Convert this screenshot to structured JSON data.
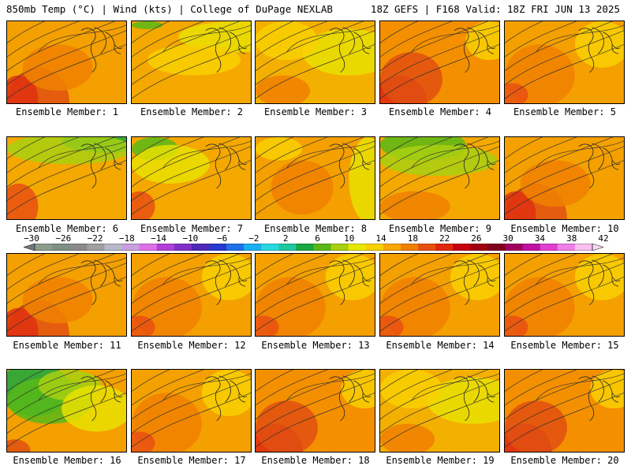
{
  "header": {
    "left": "850mb Temp (°C) | Wind (kts) | College of DuPage NEXLAB",
    "right": "18Z GEFS | F168 Valid: 18Z FRI JUN 13 2025"
  },
  "panels": [
    {
      "label": "Ensemble Member: 1",
      "scheme": "hot-west"
    },
    {
      "label": "Ensemble Member: 2",
      "scheme": "cool-north"
    },
    {
      "label": "Ensemble Member: 3",
      "scheme": "mild"
    },
    {
      "label": "Ensemble Member: 4",
      "scheme": "hot-southwest"
    },
    {
      "label": "Ensemble Member: 5",
      "scheme": "warm"
    },
    {
      "label": "Ensemble Member: 6",
      "scheme": "green-north"
    },
    {
      "label": "Ensemble Member: 7",
      "scheme": "cool-northwest"
    },
    {
      "label": "Ensemble Member: 8",
      "scheme": "warm-center"
    },
    {
      "label": "Ensemble Member: 9",
      "scheme": "green-northwest"
    },
    {
      "label": "Ensemble Member: 10",
      "scheme": "hot-west"
    },
    {
      "label": "Ensemble Member: 11",
      "scheme": "hot-west"
    },
    {
      "label": "Ensemble Member: 12",
      "scheme": "warm"
    },
    {
      "label": "Ensemble Member: 13",
      "scheme": "warm"
    },
    {
      "label": "Ensemble Member: 14",
      "scheme": "warm"
    },
    {
      "label": "Ensemble Member: 15",
      "scheme": "warm"
    },
    {
      "label": "Ensemble Member: 16",
      "scheme": "green-northwest-big"
    },
    {
      "label": "Ensemble Member: 17",
      "scheme": "warm"
    },
    {
      "label": "Ensemble Member: 18",
      "scheme": "hot-southwest"
    },
    {
      "label": "Ensemble Member: 19",
      "scheme": "mild"
    },
    {
      "label": "Ensemble Member: 20",
      "scheme": "hot-southwest"
    }
  ],
  "colorbar": {
    "labels": [
      "−30",
      "−26",
      "−22",
      "−18",
      "−14",
      "−10",
      "−6",
      "−2",
      "2",
      "6",
      "10",
      "14",
      "18",
      "22",
      "26",
      "30",
      "34",
      "38",
      "42"
    ],
    "colors": [
      "#8c9c8c",
      "#7f8f83",
      "#8a8a8a",
      "#a0a0a0",
      "#b8b8c8",
      "#c8a0e0",
      "#e070e8",
      "#b040d8",
      "#8030c8",
      "#5028b8",
      "#2838d0",
      "#2070e8",
      "#18b0f0",
      "#28d8e0",
      "#20c8a0",
      "#18a840",
      "#58b818",
      "#a8d010",
      "#e8e800",
      "#f8d000",
      "#f8a800",
      "#f08000",
      "#e85010",
      "#e02810",
      "#c80010",
      "#a00010",
      "#800020",
      "#a00060",
      "#c010a0",
      "#e040d0",
      "#f080e8",
      "#f8c0f0"
    ],
    "arrow_left": "#707880",
    "arrow_right": "#f8d8f8"
  }
}
